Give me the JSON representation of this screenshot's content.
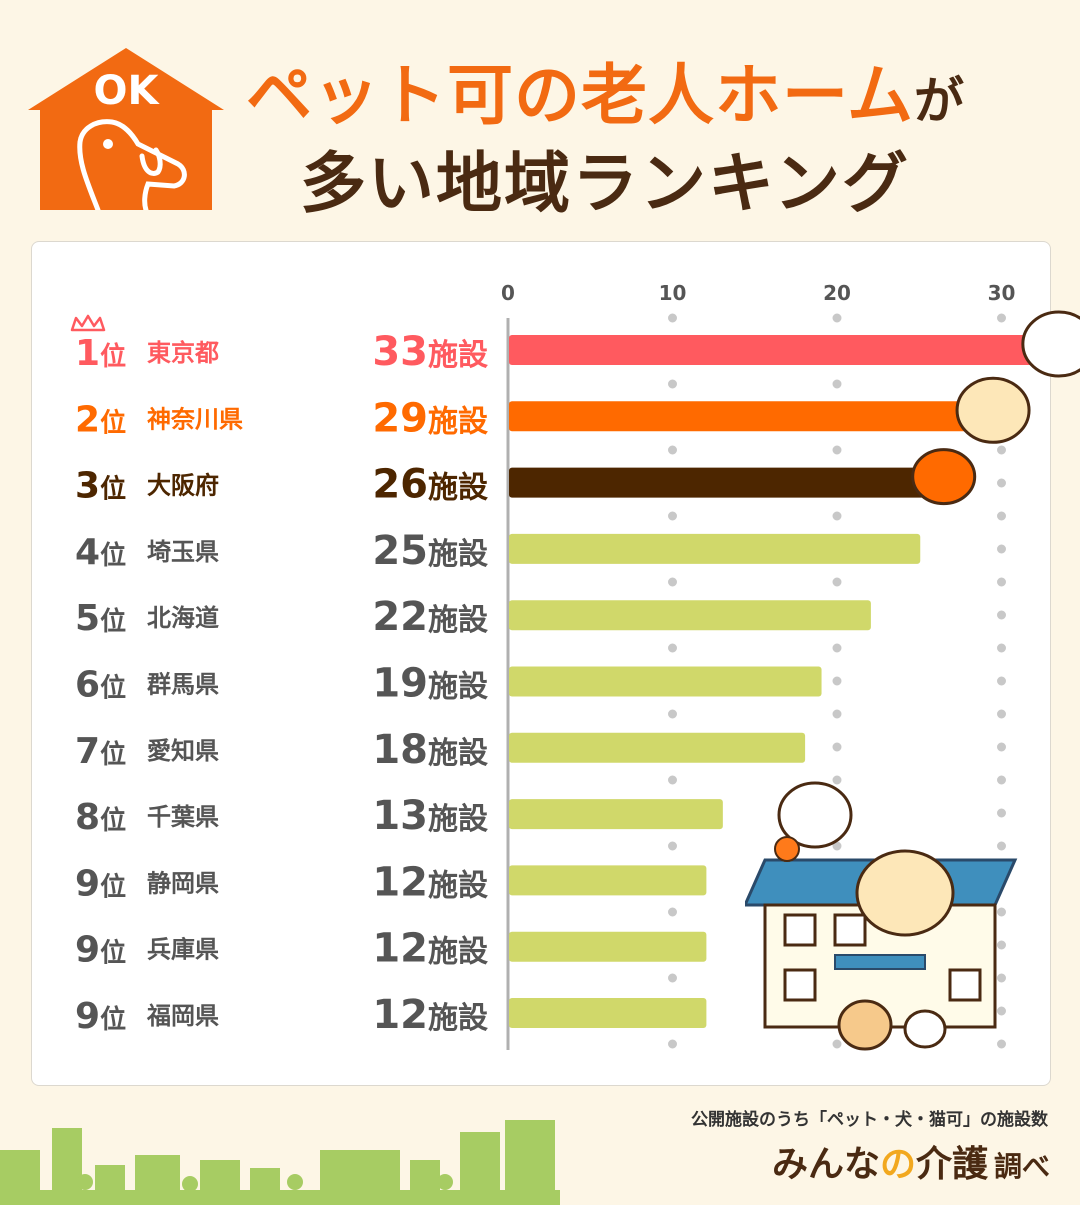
{
  "title": {
    "line1_main": "ペット可の老人ホーム",
    "line1_suffix": "が",
    "line2": "多い地域ランキング"
  },
  "logo": {
    "text": "OK"
  },
  "colors": {
    "accent_orange": "#f26a12",
    "brown": "#4a2a12",
    "rank1": "#ff5a5f",
    "rank2": "#ff6a00",
    "rank3": "#4d2600",
    "others": "#d0d86a",
    "gray_text": "#555555"
  },
  "chart_data": {
    "type": "bar",
    "orientation": "horizontal",
    "xticks": [
      0,
      10,
      20,
      30
    ],
    "xlim": [
      0,
      33
    ],
    "grid": true,
    "unit_suffix": "施設",
    "rows": [
      {
        "rank": "1位",
        "name": "東京都",
        "value": 33,
        "label": "33施設"
      },
      {
        "rank": "2位",
        "name": "神奈川県",
        "value": 29,
        "label": "29施設"
      },
      {
        "rank": "3位",
        "name": "大阪府",
        "value": 26,
        "label": "26施設"
      },
      {
        "rank": "4位",
        "name": "埼玉県",
        "value": 25,
        "label": "25施設"
      },
      {
        "rank": "5位",
        "name": "北海道",
        "value": 22,
        "label": "22施設"
      },
      {
        "rank": "6位",
        "name": "群馬県",
        "value": 19,
        "label": "19施設"
      },
      {
        "rank": "7位",
        "name": "愛知県",
        "value": 18,
        "label": "18施設"
      },
      {
        "rank": "8位",
        "name": "千葉県",
        "value": 13,
        "label": "13施設"
      },
      {
        "rank": "9位",
        "name": "静岡県",
        "value": 12,
        "label": "12施設"
      },
      {
        "rank": "9位",
        "name": "兵庫県",
        "value": 12,
        "label": "12施設"
      },
      {
        "rank": "9位",
        "name": "福岡県",
        "value": 12,
        "label": "12施設"
      }
    ]
  },
  "footer": {
    "note": "公開施設のうち「ペット・犬・猫可」の施設数",
    "brand_a": "みんな",
    "brand_no": "の",
    "brand_b": "介護",
    "brand_suffix": "調べ"
  }
}
